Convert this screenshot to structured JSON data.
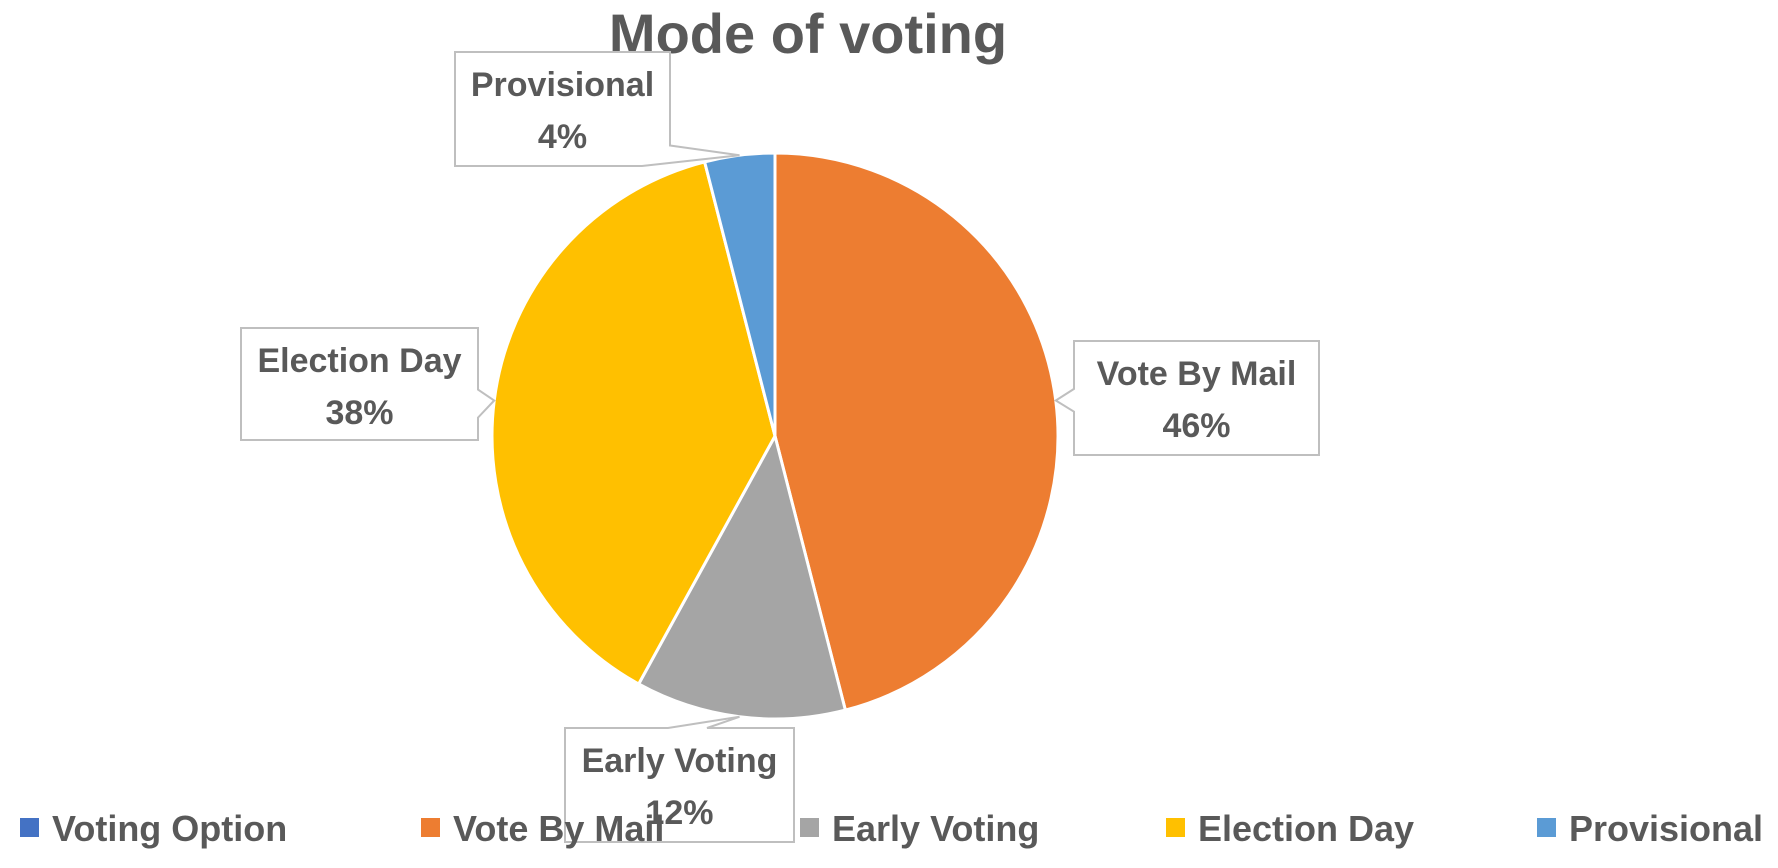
{
  "chart_data": {
    "type": "pie",
    "title": "Mode of voting",
    "categories": [
      "Vote By Mail",
      "Early Voting",
      "Election Day",
      "Provisional"
    ],
    "values": [
      46,
      12,
      38,
      4
    ],
    "value_unit": "%",
    "data_labels": [
      {
        "category": "Vote By Mail",
        "text": "46%"
      },
      {
        "category": "Early Voting",
        "text": "12%"
      },
      {
        "category": "Election Day",
        "text": "38%"
      },
      {
        "category": "Provisional",
        "text": "4%"
      }
    ],
    "colors": [
      "#ED7D31",
      "#A5A5A5",
      "#FFC000",
      "#5B9BD5"
    ],
    "legend": {
      "placement": "bottom",
      "entries": [
        {
          "label": "Voting Option",
          "color": "#4472C4"
        },
        {
          "label": "Vote By Mail",
          "color": "#ED7D31"
        },
        {
          "label": "Early Voting",
          "color": "#A5A5A5"
        },
        {
          "label": "Election Day",
          "color": "#FFC000"
        },
        {
          "label": "Provisional",
          "color": "#5B9BD5"
        }
      ]
    },
    "label_style": "callout"
  }
}
